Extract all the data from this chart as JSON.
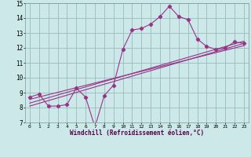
{
  "xlabel": "Windchill (Refroidissement éolien,°C)",
  "bg_color": "#cce8e8",
  "line_color": "#993388",
  "grid_color": "#99bbbb",
  "xlim": [
    -0.5,
    23.5
  ],
  "ylim": [
    7,
    15
  ],
  "xticks": [
    0,
    1,
    2,
    3,
    4,
    5,
    6,
    7,
    8,
    9,
    10,
    11,
    12,
    13,
    14,
    15,
    16,
    17,
    18,
    19,
    20,
    21,
    22,
    23
  ],
  "yticks": [
    7,
    8,
    9,
    10,
    11,
    12,
    13,
    14,
    15
  ],
  "series1_x": [
    0,
    1,
    2,
    3,
    4,
    5,
    6,
    7,
    8,
    9,
    10,
    11,
    12,
    13,
    14,
    15,
    16,
    17,
    18,
    19,
    20,
    21,
    22,
    23
  ],
  "series1_y": [
    8.7,
    8.9,
    8.1,
    8.1,
    8.2,
    9.3,
    8.7,
    6.7,
    8.8,
    9.5,
    11.9,
    13.2,
    13.3,
    13.6,
    14.1,
    14.8,
    14.1,
    13.9,
    12.6,
    12.1,
    11.9,
    12.0,
    12.4,
    12.3
  ],
  "series2_x": [
    0,
    23
  ],
  "series2_y": [
    8.55,
    12.15
  ],
  "series3_x": [
    0,
    23
  ],
  "series3_y": [
    8.3,
    12.45
  ],
  "series4_x": [
    0,
    23
  ],
  "series4_y": [
    8.1,
    12.3
  ]
}
